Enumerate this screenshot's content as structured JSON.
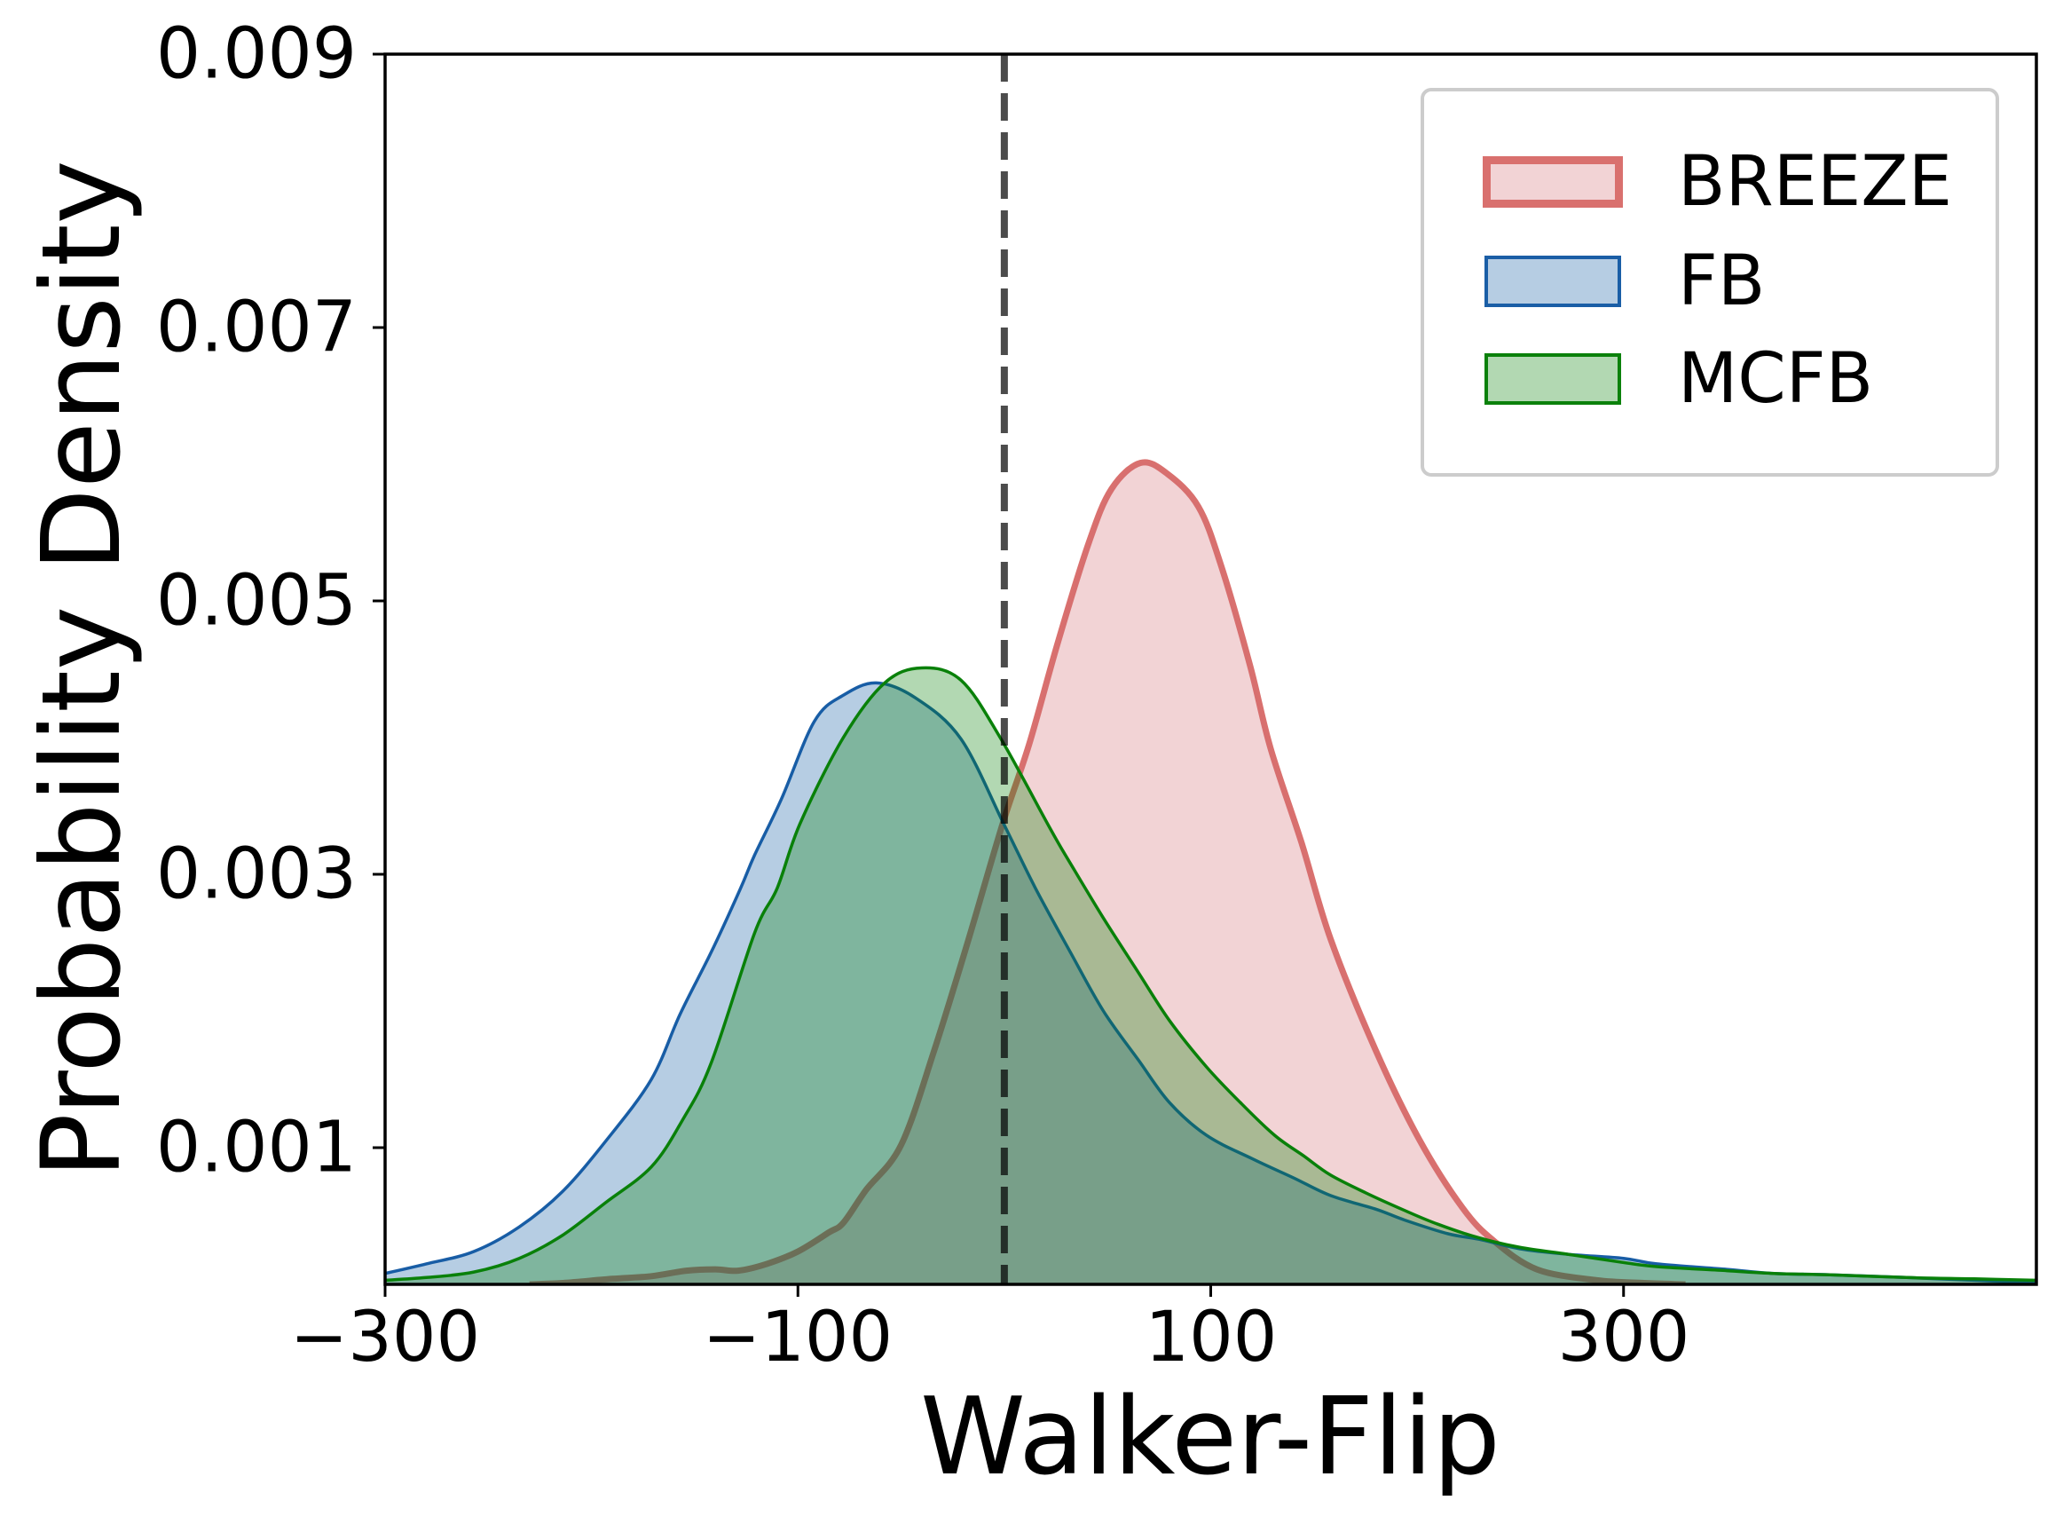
{
  "chart_data": {
    "type": "area",
    "title": "",
    "xlabel": "Walker-Flip",
    "ylabel": "Probability Density",
    "xlim": [
      -300,
      500
    ],
    "ylim": [
      0,
      0.009
    ],
    "x_ticks": [
      -300,
      -100,
      100,
      300
    ],
    "x_tick_labels": [
      "−300",
      "−100",
      "100",
      "300"
    ],
    "y_ticks": [
      0.001,
      0.003,
      0.005,
      0.007,
      0.009
    ],
    "y_tick_labels": [
      "0.001",
      "0.003",
      "0.005",
      "0.007",
      "0.009"
    ],
    "grid": false,
    "legend_position": "upper right",
    "reference_line": {
      "x": 0,
      "style": "dashed",
      "color": "#4a4a4a"
    },
    "series": [
      {
        "name": "BREEZE",
        "edge_color": "#d9706e",
        "fill_color": "#d46c73",
        "fill_opacity": 0.3,
        "line_width": 7,
        "x": [
          -230,
          -214,
          -190,
          -171,
          -154,
          -140,
          -129,
          -115,
          -100,
          -85,
          -78,
          -67,
          -50,
          -34,
          -18,
          -1,
          12,
          26,
          41,
          52,
          66,
          79,
          94,
          105,
          119,
          129,
          144,
          158,
          180,
          201,
          222,
          237,
          258,
          287,
          310,
          330
        ],
        "values": [
          0.0,
          1e-05,
          4e-05,
          6e-05,
          0.0001,
          0.00011,
          0.0001,
          0.00015,
          0.00024,
          0.00038,
          0.00045,
          0.00069,
          0.00102,
          0.00171,
          0.00249,
          0.00336,
          0.00395,
          0.0047,
          0.00543,
          0.00582,
          0.00601,
          0.00593,
          0.00569,
          0.00526,
          0.00453,
          0.00392,
          0.00323,
          0.00253,
          0.00171,
          0.00106,
          0.00056,
          0.00032,
          0.00011,
          3e-05,
          1e-05,
          0.0
        ]
      },
      {
        "name": "FB",
        "edge_color": "#1a5ea6",
        "fill_color": "#0c58a2",
        "fill_opacity": 0.3,
        "line_width": 3.5,
        "x": [
          -300,
          -280,
          -257,
          -235,
          -214,
          -193,
          -171,
          -157,
          -142,
          -128,
          -121,
          -108,
          -92,
          -78,
          -62,
          -43,
          -21,
          0,
          15,
          32,
          48,
          65,
          80,
          98,
          120,
          140,
          158,
          180,
          194,
          215,
          230,
          250,
          273,
          300,
          316,
          350,
          373,
          400,
          437,
          470,
          500
        ],
        "values": [
          8e-05,
          0.00015,
          0.00024,
          0.00042,
          0.00068,
          0.00105,
          0.0015,
          0.00198,
          0.00243,
          0.00289,
          0.00314,
          0.00355,
          0.00412,
          0.00431,
          0.0044,
          0.00429,
          0.00399,
          0.00336,
          0.0029,
          0.00243,
          0.002,
          0.00164,
          0.00133,
          0.00109,
          0.00092,
          0.00078,
          0.00065,
          0.00055,
          0.00047,
          0.00037,
          0.00033,
          0.00026,
          0.00022,
          0.00019,
          0.00015,
          0.00011,
          8e-05,
          7e-05,
          5e-05,
          3e-05,
          1e-05
        ]
      },
      {
        "name": "MCFB",
        "edge_color": "#0b810b",
        "fill_color": "#007d00",
        "fill_opacity": 0.3,
        "line_width": 3.5,
        "x": [
          -300,
          -280,
          -257,
          -235,
          -214,
          -193,
          -171,
          -156,
          -142,
          -121,
          -110,
          -99,
          -78,
          -58,
          -40,
          -21,
          -2,
          22,
          32,
          48,
          65,
          80,
          98,
          115,
          131,
          145,
          158,
          175,
          194,
          210,
          230,
          250,
          273,
          300,
          316,
          350,
          373,
          400,
          437,
          470,
          500
        ],
        "values": [
          3e-05,
          5e-05,
          9e-05,
          0.00019,
          0.00036,
          0.0006,
          0.00086,
          0.0012,
          0.00162,
          0.00257,
          0.0029,
          0.00337,
          0.004,
          0.0044,
          0.00451,
          0.00442,
          0.004,
          0.00334,
          0.00308,
          0.00268,
          0.00228,
          0.00193,
          0.00159,
          0.00132,
          0.00109,
          0.00094,
          0.0008,
          0.00067,
          0.00054,
          0.00044,
          0.00034,
          0.00027,
          0.00022,
          0.00016,
          0.00013,
          0.0001,
          8e-05,
          7e-05,
          5e-05,
          4e-05,
          3e-05
        ]
      }
    ]
  },
  "axes": {
    "xlabel": "Walker-Flip",
    "ylabel": "Probability Density",
    "x_tick_labels": [
      "−300",
      "−100",
      "100",
      "300"
    ],
    "y_tick_labels": [
      "0.009",
      "0.007",
      "0.005",
      "0.003",
      "0.001"
    ]
  },
  "legend": {
    "items": [
      {
        "label": "BREEZE",
        "edge": "#d9706e",
        "fill": "#f2d3d5"
      },
      {
        "label": "FB",
        "edge": "#1a5ea6",
        "fill": "#b6cde3"
      },
      {
        "label": "MCFB",
        "edge": "#0b810b",
        "fill": "#b2d8b2"
      }
    ]
  }
}
